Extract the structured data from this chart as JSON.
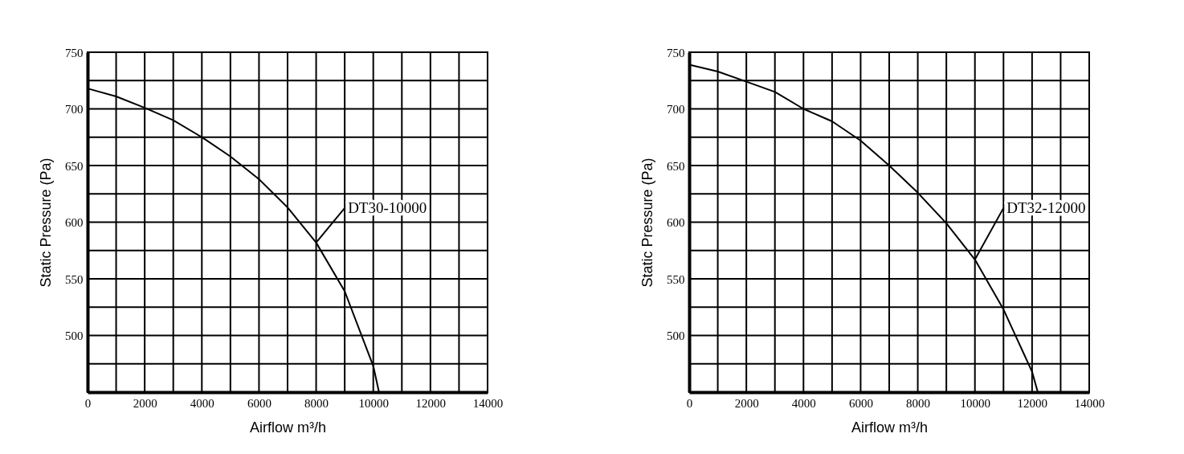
{
  "chart_data": [
    {
      "type": "line",
      "xlabel": "Airflow m³/h",
      "ylabel": "Static Pressure (Pa)",
      "xlim": [
        0,
        14000
      ],
      "ylim": [
        450,
        750
      ],
      "xticks": [
        0,
        {
          "value": 1000,
          "label": null
        },
        2000,
        {
          "value": 3000,
          "label": null
        },
        4000,
        {
          "value": 5000,
          "label": null
        },
        6000,
        {
          "value": 7000,
          "label": null
        },
        8000,
        {
          "value": 9000,
          "label": null
        },
        10000,
        {
          "value": 11000,
          "label": null
        },
        12000,
        {
          "value": 13000,
          "label": null
        },
        14000
      ],
      "yticks": [
        {
          "value": 450,
          "label": null
        },
        {
          "value": 475,
          "label": null
        },
        500,
        {
          "value": 525,
          "label": null
        },
        550,
        {
          "value": 575,
          "label": null
        },
        600,
        {
          "value": 625,
          "label": null
        },
        650,
        {
          "value": 675,
          "label": null
        },
        700,
        {
          "value": 725,
          "label": null
        },
        750
      ],
      "grid": true,
      "legend": false,
      "marker": "none",
      "line_style": "solid",
      "series": [
        {
          "name": "DT30-10000",
          "color": "#000000",
          "x": [
            0,
            1000,
            2000,
            3000,
            4000,
            5000,
            6000,
            7000,
            8000,
            9000,
            10000,
            10200
          ],
          "values": [
            718,
            711,
            701,
            690,
            675,
            658,
            638,
            613,
            582,
            539,
            473,
            450
          ]
        }
      ]
    },
    {
      "type": "line",
      "xlabel": "Airflow m³/h",
      "ylabel": "Static Pressure (Pa)",
      "xlim": [
        0,
        14000
      ],
      "ylim": [
        450,
        750
      ],
      "xticks": [
        0,
        {
          "value": 1000,
          "label": null
        },
        2000,
        {
          "value": 3000,
          "label": null
        },
        4000,
        {
          "value": 5000,
          "label": null
        },
        6000,
        {
          "value": 7000,
          "label": null
        },
        8000,
        {
          "value": 9000,
          "label": null
        },
        10000,
        {
          "value": 11000,
          "label": null
        },
        12000,
        {
          "value": 13000,
          "label": null
        },
        14000
      ],
      "yticks": [
        {
          "value": 450,
          "label": null
        },
        {
          "value": 475,
          "label": null
        },
        500,
        {
          "value": 525,
          "label": null
        },
        550,
        {
          "value": 575,
          "label": null
        },
        600,
        {
          "value": 625,
          "label": null
        },
        650,
        {
          "value": 675,
          "label": null
        },
        700,
        {
          "value": 725,
          "label": null
        },
        750
      ],
      "grid": true,
      "legend": false,
      "marker": "none",
      "line_style": "solid",
      "series": [
        {
          "name": "DT32-12000",
          "color": "#000000",
          "x": [
            0,
            1000,
            2000,
            3000,
            4000,
            5000,
            6000,
            7000,
            8000,
            9000,
            10000,
            11000,
            12000,
            12200
          ],
          "values": [
            739,
            733,
            724,
            715,
            700,
            689,
            672,
            650,
            626,
            599,
            567,
            523,
            468,
            450
          ]
        }
      ]
    }
  ]
}
